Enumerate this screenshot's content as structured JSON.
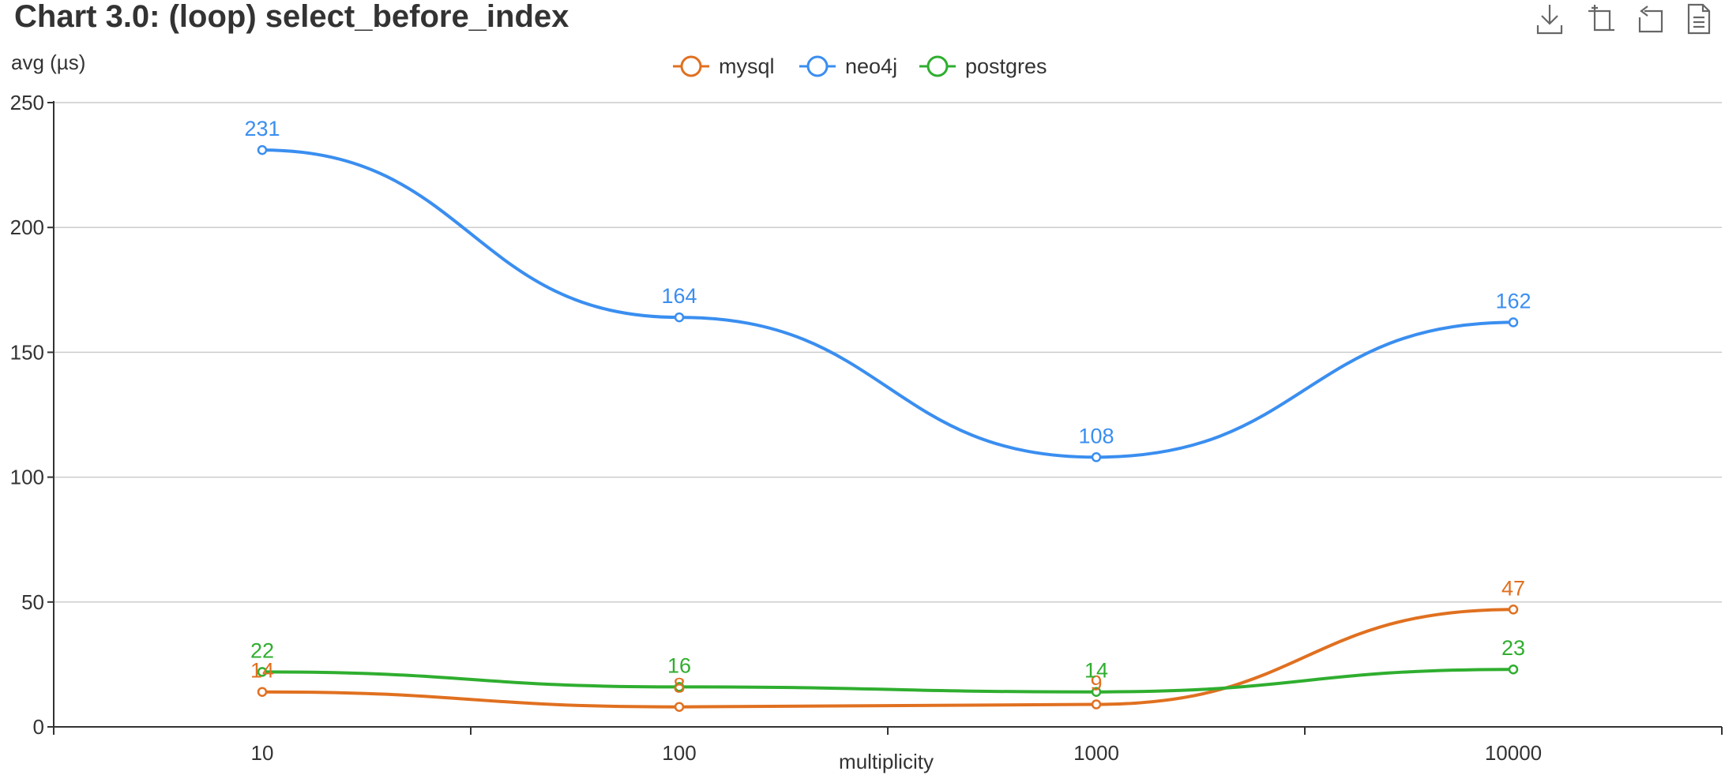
{
  "chart_data": {
    "type": "line",
    "title": "Chart 3.0: (loop) select_before_index",
    "ylabel": "avg (µs)",
    "xlabel": "multiplicity",
    "x": [
      "10",
      "100",
      "1000",
      "10000"
    ],
    "x_scale": "log",
    "ylim": [
      0,
      250
    ],
    "y_ticks": [
      0,
      50,
      100,
      150,
      200,
      250
    ],
    "grid": true,
    "legend_position": "top-center",
    "smooth": true,
    "series": [
      {
        "name": "mysql",
        "color": "#e07020",
        "values": [
          14,
          8,
          9,
          47
        ]
      },
      {
        "name": "neo4j",
        "color": "#3a8ef0",
        "values": [
          231,
          164,
          108,
          162
        ]
      },
      {
        "name": "postgres",
        "color": "#2fae2f",
        "values": [
          22,
          16,
          14,
          23
        ]
      }
    ]
  },
  "toolbox": {
    "icons": [
      "download-icon",
      "zoom-icon",
      "restore-icon",
      "data-view-icon"
    ]
  }
}
